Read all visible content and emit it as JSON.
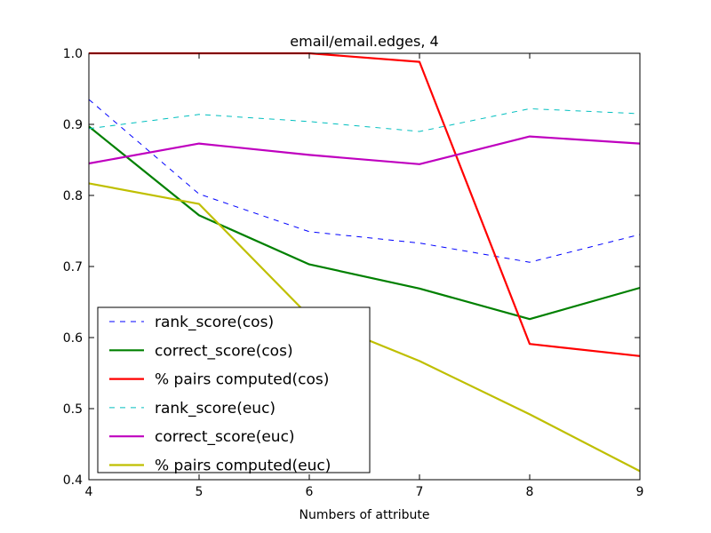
{
  "chart_data": {
    "type": "line",
    "title": "email/email.edges, 4",
    "xlabel": "Numbers of attribute",
    "ylabel": "",
    "xlim": [
      4,
      9
    ],
    "ylim": [
      0.4,
      1.0
    ],
    "xticks": [
      "4",
      "5",
      "6",
      "7",
      "8",
      "9"
    ],
    "yticks": [
      "0.4",
      "0.5",
      "0.6",
      "0.7",
      "0.8",
      "0.9",
      "1.0"
    ],
    "grid": false,
    "legend_position": "lower-left",
    "x": [
      4,
      5,
      6,
      7,
      8,
      9
    ],
    "series": [
      {
        "name": "rank_score(cos)",
        "color": "#0000ff",
        "style": "dashed",
        "values": [
          0.935,
          0.802,
          0.749,
          0.733,
          0.706,
          0.745
        ]
      },
      {
        "name": "correct_score(cos)",
        "color": "#008000",
        "style": "solid",
        "values": [
          0.897,
          0.772,
          0.703,
          0.669,
          0.626,
          0.67
        ]
      },
      {
        "name": "% pairs computed(cos)",
        "color": "#ff0000",
        "style": "solid",
        "values": [
          1.0,
          1.0,
          1.0,
          0.988,
          0.591,
          0.574
        ]
      },
      {
        "name": "rank_score(euc)",
        "color": "#00bfbf",
        "style": "dashed",
        "values": [
          0.894,
          0.914,
          0.904,
          0.89,
          0.922,
          0.915
        ]
      },
      {
        "name": "correct_score(euc)",
        "color": "#bf00bf",
        "style": "solid",
        "values": [
          0.845,
          0.873,
          0.857,
          0.844,
          0.883,
          0.873
        ]
      },
      {
        "name": "% pairs computed(euc)",
        "color": "#bfbf00",
        "style": "solid",
        "values": [
          0.817,
          0.788,
          0.63,
          0.567,
          0.492,
          0.412
        ]
      }
    ]
  }
}
